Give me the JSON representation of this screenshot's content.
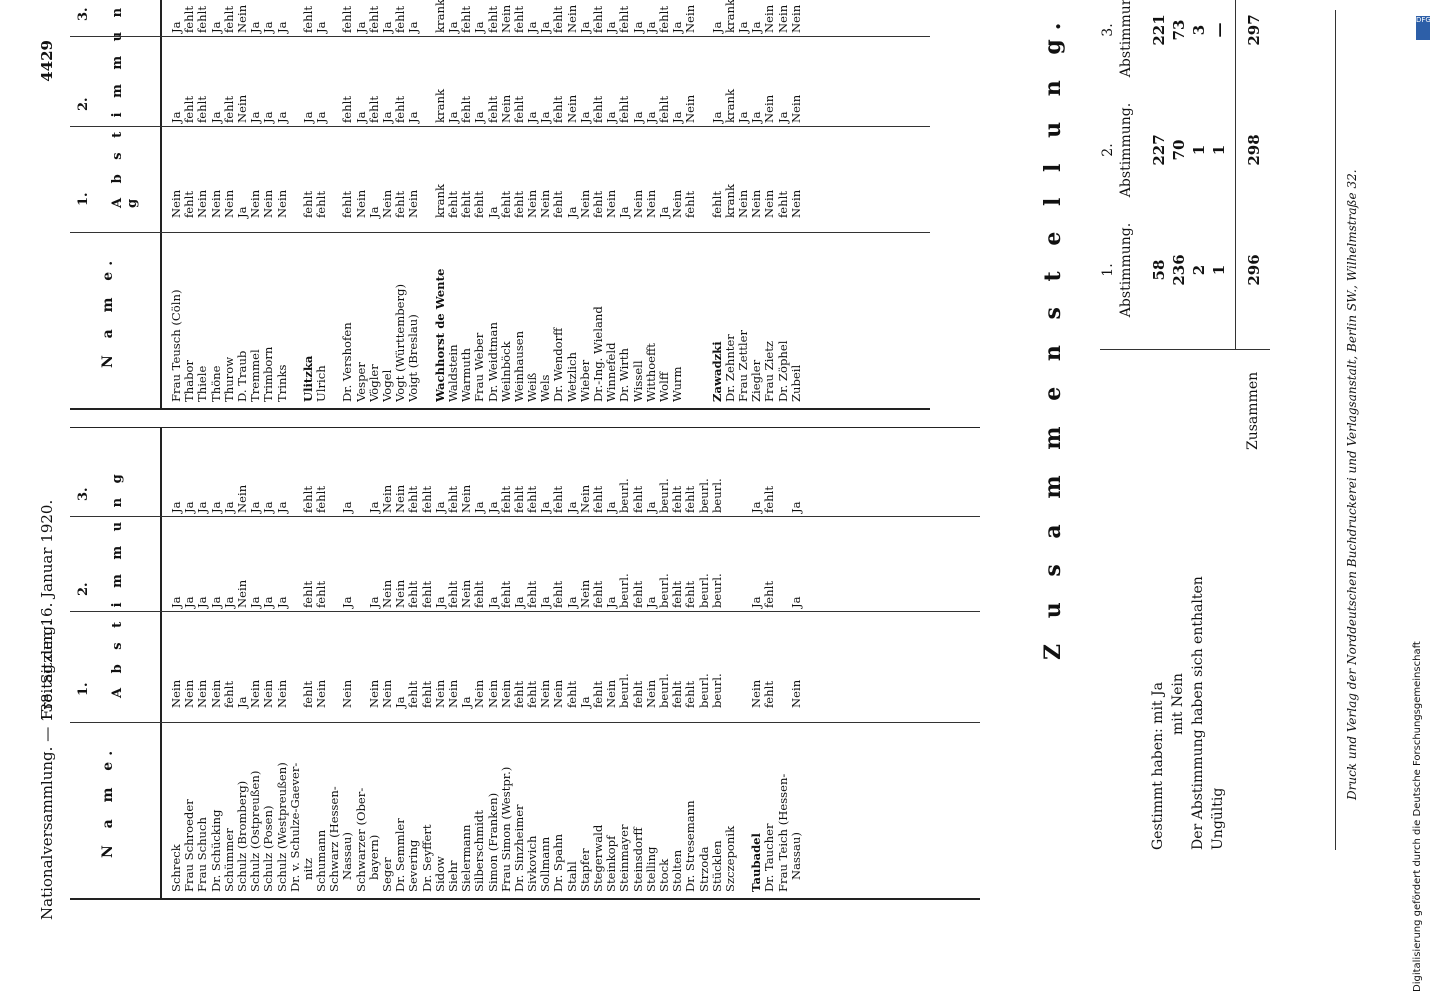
{
  "header": {
    "left": "Nationalversammlung. — 138. Sitzung.",
    "center": "Freitag den 16. Januar 1920.",
    "page": "4429"
  },
  "table_head": {
    "name": "N a m e.",
    "abstimmung": "A b s t i m m u n g",
    "cols": [
      "1.",
      "2.",
      "3."
    ]
  },
  "left_rows": [
    {
      "name": "Schreck",
      "v": [
        "Nein",
        "Ja",
        "Ja"
      ]
    },
    {
      "name": "Frau Schroeder",
      "v": [
        "Nein",
        "Ja",
        "Ja"
      ]
    },
    {
      "name": "Frau Schuch",
      "v": [
        "Nein",
        "Ja",
        "Ja"
      ]
    },
    {
      "name": "Dr. Schücking",
      "v": [
        "Nein",
        "Ja",
        "Ja"
      ]
    },
    {
      "name": "Schümmer",
      "v": [
        "fehlt",
        "Ja",
        "Ja"
      ]
    },
    {
      "name": "Schulz (Bromberg)",
      "v": [
        "Ja",
        "Nein",
        "Nein"
      ]
    },
    {
      "name": "Schulz (Ostpreußen)",
      "v": [
        "Nein",
        "Ja",
        "Ja"
      ]
    },
    {
      "name": "Schulz (Posen)",
      "v": [
        "Nein",
        "Ja",
        "Ja"
      ]
    },
    {
      "name": "Schulz (Westpreußen)",
      "v": [
        "Nein",
        "Ja",
        "Ja"
      ]
    },
    {
      "name": "Dr. v. Schulze-Gaever-",
      "v": [
        "",
        "",
        ""
      ]
    },
    {
      "name": "nitz",
      "indent": true,
      "v": [
        "fehlt",
        "fehlt",
        "fehlt"
      ]
    },
    {
      "name": "Schumann",
      "v": [
        "Nein",
        "fehlt",
        "fehlt"
      ]
    },
    {
      "name": "Schwarz (Hessen-",
      "v": [
        "",
        "",
        ""
      ]
    },
    {
      "name": "Nassau)",
      "indent": true,
      "v": [
        "Nein",
        "Ja",
        "Ja"
      ]
    },
    {
      "name": "Schwarzer (Ober-",
      "v": [
        "",
        "",
        ""
      ]
    },
    {
      "name": "bayern)",
      "indent": true,
      "v": [
        "Nein",
        "Ja",
        "Ja"
      ]
    },
    {
      "name": "Seger",
      "v": [
        "Nein",
        "Nein",
        "Nein"
      ]
    },
    {
      "name": "Dr. Semmler",
      "v": [
        "Ja",
        "Nein",
        "Nein"
      ]
    },
    {
      "name": "Severing",
      "v": [
        "fehlt",
        "fehlt",
        "fehlt"
      ]
    },
    {
      "name": "Dr. Seyffert",
      "v": [
        "fehlt",
        "fehlt",
        "fehlt"
      ]
    },
    {
      "name": "Sidow",
      "v": [
        "Nein",
        "Ja",
        "Ja"
      ]
    },
    {
      "name": "Siehr",
      "v": [
        "Nein",
        "fehlt",
        "fehlt"
      ]
    },
    {
      "name": "Sielermann",
      "v": [
        "Ja",
        "Nein",
        "Nein"
      ]
    },
    {
      "name": "Silberschmidt",
      "v": [
        "Nein",
        "fehlt",
        "Ja"
      ]
    },
    {
      "name": "Simon (Franken)",
      "v": [
        "Nein",
        "Ja",
        "Ja"
      ]
    },
    {
      "name": "Frau Simon (Westpr.)",
      "v": [
        "Nein",
        "fehlt",
        "fehlt"
      ]
    },
    {
      "name": "Dr. Sinzheimer",
      "v": [
        "fehlt",
        "Ja",
        "fehlt"
      ]
    },
    {
      "name": "Sivkovich",
      "v": [
        "fehlt",
        "fehlt",
        "fehlt"
      ]
    },
    {
      "name": "Sollmann",
      "v": [
        "Nein",
        "Ja",
        "Ja"
      ]
    },
    {
      "name": "Dr. Spahn",
      "v": [
        "Nein",
        "fehlt",
        "fehlt"
      ]
    },
    {
      "name": "Stahl",
      "v": [
        "fehlt",
        "Ja",
        "Ja"
      ]
    },
    {
      "name": "Stapfer",
      "v": [
        "Ja",
        "Nein",
        "Nein"
      ]
    },
    {
      "name": "Stegerwald",
      "v": [
        "fehlt",
        "fehlt",
        "fehlt"
      ]
    },
    {
      "name": "Steinkopf",
      "v": [
        "Nein",
        "Ja",
        "Ja"
      ]
    },
    {
      "name": "Steinmayer",
      "v": [
        "beurl.",
        "beurl.",
        "beurl."
      ]
    },
    {
      "name": "Steinsdorff",
      "v": [
        "fehlt",
        "fehlt",
        "fehlt"
      ]
    },
    {
      "name": "Stelling",
      "v": [
        "Nein",
        "Ja",
        "Ja"
      ]
    },
    {
      "name": "Stock",
      "v": [
        "beurl.",
        "beurl.",
        "beurl."
      ]
    },
    {
      "name": "Stolten",
      "v": [
        "fehlt",
        "fehlt",
        "fehlt"
      ]
    },
    {
      "name": "Dr. Stresemann",
      "v": [
        "fehlt",
        "fehlt",
        "fehlt"
      ]
    },
    {
      "name": "Strzoda",
      "v": [
        "beurl.",
        "beurl.",
        "beurl."
      ]
    },
    {
      "name": "Stücklen",
      "v": [
        "beurl.",
        "beurl.",
        "beurl."
      ]
    },
    {
      "name": "Szczeponik",
      "v": [
        "",
        "",
        ""
      ]
    },
    {
      "name": "",
      "v": [
        "",
        "",
        ""
      ]
    },
    {
      "name": "Taubadel",
      "bold": true,
      "v": [
        "Nein",
        "Ja",
        "Ja"
      ]
    },
    {
      "name": "Dr. Taucher",
      "v": [
        "fehlt",
        "fehlt",
        "fehlt"
      ]
    },
    {
      "name": "Frau Teich (Hessen-",
      "v": [
        "",
        "",
        ""
      ]
    },
    {
      "name": "Nassau)",
      "indent": true,
      "v": [
        "Nein",
        "Ja",
        "Ja"
      ]
    }
  ],
  "right_rows": [
    {
      "name": "Frau Teusch (Cöln)",
      "v": [
        "Nein",
        "Ja",
        "Ja"
      ]
    },
    {
      "name": "Thabor",
      "v": [
        "fehlt",
        "fehlt",
        "fehlt"
      ]
    },
    {
      "name": "Thiele",
      "v": [
        "Nein",
        "fehlt",
        "fehlt"
      ]
    },
    {
      "name": "Thöne",
      "v": [
        "Nein",
        "Ja",
        "Ja"
      ]
    },
    {
      "name": "Thurow",
      "v": [
        "Nein",
        "fehlt",
        "fehlt"
      ]
    },
    {
      "name": "D. Traub",
      "v": [
        "Ja",
        "Nein",
        "Nein"
      ]
    },
    {
      "name": "Tremmel",
      "v": [
        "Nein",
        "Ja",
        "Ja"
      ]
    },
    {
      "name": "Trimborn",
      "v": [
        "Nein",
        "Ja",
        "Ja"
      ]
    },
    {
      "name": "Trinks",
      "v": [
        "Nein",
        "Ja",
        "Ja"
      ]
    },
    {
      "name": "",
      "v": [
        "",
        "",
        ""
      ]
    },
    {
      "name": "Ulitzka",
      "bold": true,
      "v": [
        "fehlt",
        "Ja",
        "fehlt"
      ]
    },
    {
      "name": "Ulrich",
      "v": [
        "fehlt",
        "Ja",
        "Ja"
      ]
    },
    {
      "name": "",
      "v": [
        "",
        "",
        ""
      ]
    },
    {
      "name": "Dr. Vershofen",
      "v": [
        "fehlt",
        "fehlt",
        "fehlt"
      ]
    },
    {
      "name": "Vesper",
      "v": [
        "Nein",
        "Ja",
        "Ja"
      ]
    },
    {
      "name": "Vögler",
      "v": [
        "Ja",
        "fehlt",
        "fehlt"
      ]
    },
    {
      "name": "Vogel",
      "v": [
        "Nein",
        "Ja",
        "Ja"
      ]
    },
    {
      "name": "Vogt (Württemberg)",
      "v": [
        "fehlt",
        "fehlt",
        "fehlt"
      ]
    },
    {
      "name": "Voigt (Breslau)",
      "v": [
        "Nein",
        "Ja",
        "Ja"
      ]
    },
    {
      "name": "",
      "v": [
        "",
        "",
        ""
      ]
    },
    {
      "name": "Wachhorst de Wente",
      "bold": true,
      "v": [
        "krank",
        "krank",
        "krank"
      ]
    },
    {
      "name": "Waldstein",
      "v": [
        "fehlt",
        "Ja",
        "Ja"
      ]
    },
    {
      "name": "Warmuth",
      "v": [
        "fehlt",
        "fehlt",
        "fehlt"
      ]
    },
    {
      "name": "Frau Weber",
      "v": [
        "fehlt",
        "Ja",
        "Ja"
      ]
    },
    {
      "name": "Dr. Weidtman",
      "v": [
        "Ja",
        "fehlt",
        "fehlt"
      ]
    },
    {
      "name": "Weilnböck",
      "v": [
        "fehlt",
        "Nein",
        "Nein"
      ]
    },
    {
      "name": "Weinhausen",
      "v": [
        "fehlt",
        "fehlt",
        "fehlt"
      ]
    },
    {
      "name": "Weiß",
      "v": [
        "Nein",
        "Ja",
        "Ja"
      ]
    },
    {
      "name": "Wels",
      "v": [
        "Nein",
        "Ja",
        "Ja"
      ]
    },
    {
      "name": "Dr. Wendorff",
      "v": [
        "fehlt",
        "fehlt",
        "fehlt"
      ]
    },
    {
      "name": "Wetzlich",
      "v": [
        "Ja",
        "Nein",
        "Nein"
      ]
    },
    {
      "name": "Wieber",
      "v": [
        "Nein",
        "Ja",
        "Ja"
      ]
    },
    {
      "name": "Dr.-Ing. Wieland",
      "v": [
        "fehlt",
        "fehlt",
        "fehlt"
      ]
    },
    {
      "name": "Winnefeld",
      "v": [
        "Nein",
        "Ja",
        "Ja"
      ]
    },
    {
      "name": "Dr. Wirth",
      "v": [
        "Ja",
        "fehlt",
        "fehlt"
      ]
    },
    {
      "name": "Wissell",
      "v": [
        "Nein",
        "Ja",
        "Ja"
      ]
    },
    {
      "name": "Witthoefft",
      "v": [
        "Nein",
        "Ja",
        "Ja"
      ]
    },
    {
      "name": "Wolff",
      "v": [
        "Ja",
        "fehlt",
        "fehlt"
      ]
    },
    {
      "name": "Wurm",
      "v": [
        "Nein",
        "Ja",
        "Ja"
      ]
    },
    {
      "name": "",
      "v": [
        "fehlt",
        "Nein",
        "Nein"
      ]
    },
    {
      "name": "",
      "v": [
        "",
        "",
        ""
      ]
    },
    {
      "name": "Zawadzki",
      "bold": true,
      "v": [
        "fehlt",
        "Ja",
        "Ja"
      ]
    },
    {
      "name": "Dr. Zehnter",
      "v": [
        "krank",
        "krank",
        "krank"
      ]
    },
    {
      "name": "Frau Zettler",
      "v": [
        "Nein",
        "Ja",
        "Ja"
      ]
    },
    {
      "name": "Ziegler",
      "v": [
        "Nein",
        "Ja",
        "Ja"
      ]
    },
    {
      "name": "Frau Zietz",
      "v": [
        "Nein",
        "Nein",
        "Nein"
      ]
    },
    {
      "name": "Dr. Zöphel",
      "v": [
        "fehlt",
        "Ja",
        "Nein"
      ]
    },
    {
      "name": "Zubeil",
      "v": [
        "Nein",
        "Nein",
        "Nein"
      ]
    }
  ],
  "summary": {
    "title": "Z u s a m m e n s t e l l u n g.",
    "col_heads": [
      "1.",
      "2.",
      "3."
    ],
    "col_sub": "Abstimmung.",
    "rows": [
      {
        "label": "Gestimmt haben: mit Ja",
        "v": [
          "58",
          "227",
          "221"
        ]
      },
      {
        "label": "mit Nein",
        "v": [
          "236",
          "70",
          "73"
        ]
      },
      {
        "label": "Der Abstimmung haben sich enthalten",
        "v": [
          "2",
          "1",
          "3"
        ]
      },
      {
        "label": "Ungültig",
        "v": [
          "1",
          "1",
          "—"
        ]
      }
    ],
    "total_label": "Zusammen",
    "totals": [
      "296",
      "298",
      "297"
    ]
  },
  "footer": "Druck und Verlag der Norddeutschen Buchdruckerei und Verlagsanstalt, Berlin SW., Wilhelmstraße 32.",
  "side_note": "Digitalisierung gefördert durch die Deutsche Forschungsgemeinschaft",
  "side_logo": "DFG"
}
